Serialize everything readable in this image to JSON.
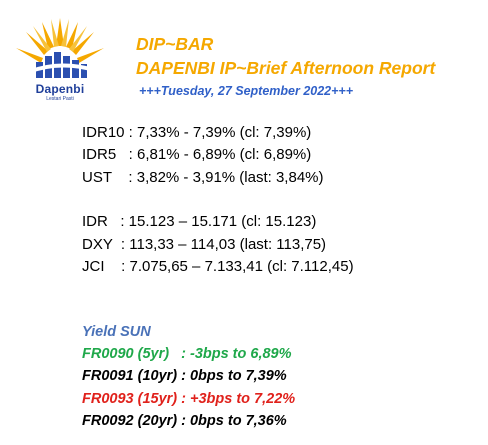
{
  "logo": {
    "name": "Dapenbi",
    "tagline": "Lestari Pasti"
  },
  "header": {
    "title": "DIP~BAR",
    "subtitle": "DAPENBI IP~Brief Afternoon Report",
    "date": "+++Tuesday, 27 September 2022+++"
  },
  "market": [
    "IDR10 : 7,33% - 7,39% (cl: 7,39%)",
    "IDR5   : 6,81% - 6,89% (cl: 6,89%)",
    "UST    : 3,82% - 3,91% (last: 3,84%)",
    "IDR   : 15.123 – 15.171 (cl: 15.123)",
    "DXY  : 113,33 – 114,03 (last: 113,75)",
    "JCI    : 7.075,65 – 7.133,41 (cl: 7.112,45)"
  ],
  "yield": {
    "heading": "Yield SUN",
    "rows": [
      {
        "text": "FR0090 (5yr)   : -3bps to 6,89%",
        "color": "#1fa84a"
      },
      {
        "text": "FR0091 (10yr) : 0bps to 7,39%",
        "color": "#000000"
      },
      {
        "text": "FR0093 (15yr) : +3bps to 7,22%",
        "color": "#e0211b"
      },
      {
        "text": "FR0092 (20yr) : 0bps to 7,36%",
        "color": "#000000"
      }
    ]
  },
  "colors": {
    "accent": "#f5a800",
    "date": "#3060c8",
    "yield_heading": "#4a72b8",
    "logo_blue": "#1f3f9a"
  }
}
